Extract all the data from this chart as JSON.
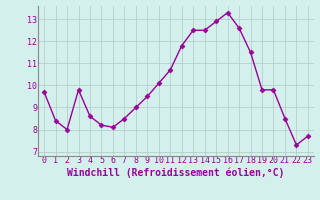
{
  "x": [
    0,
    1,
    2,
    3,
    4,
    5,
    6,
    7,
    8,
    9,
    10,
    11,
    12,
    13,
    14,
    15,
    16,
    17,
    18,
    19,
    20,
    21,
    22,
    23
  ],
  "y": [
    9.7,
    8.4,
    8.0,
    9.8,
    8.6,
    8.2,
    8.1,
    8.5,
    9.0,
    9.5,
    10.1,
    10.7,
    11.8,
    12.5,
    12.5,
    12.9,
    13.3,
    12.6,
    11.5,
    9.8,
    9.8,
    8.5,
    7.3,
    7.7
  ],
  "line_color": "#990099",
  "marker": "D",
  "markersize": 2.5,
  "linewidth": 1.0,
  "background_color": "#d4f0ec",
  "grid_color": "#b0c8c4",
  "xlabel": "Windchill (Refroidissement éolien,°C)",
  "ylim": [
    6.8,
    13.6
  ],
  "yticks": [
    7,
    8,
    9,
    10,
    11,
    12,
    13
  ],
  "xticks": [
    0,
    1,
    2,
    3,
    4,
    5,
    6,
    7,
    8,
    9,
    10,
    11,
    12,
    13,
    14,
    15,
    16,
    17,
    18,
    19,
    20,
    21,
    22,
    23
  ],
  "tick_fontsize": 6,
  "xlabel_fontsize": 7,
  "label_color": "#990099",
  "spine_color": "#888888"
}
